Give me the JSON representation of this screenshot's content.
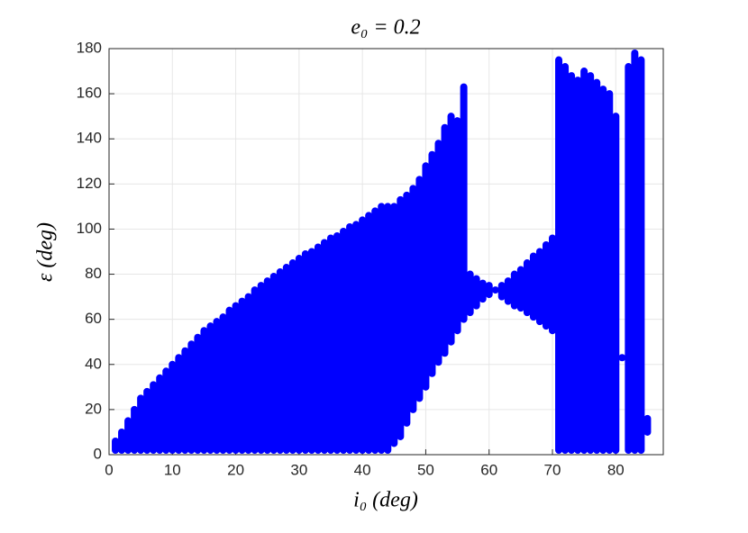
{
  "chart_data": {
    "type": "range",
    "title": "e₀ = 0.2",
    "x_label": "i₀ (deg)",
    "y_label": "ε (deg)",
    "color": "#0000ff",
    "x": [
      1,
      2,
      3,
      4,
      5,
      6,
      7,
      8,
      9,
      10,
      11,
      12,
      13,
      14,
      15,
      16,
      17,
      18,
      19,
      20,
      21,
      22,
      23,
      24,
      25,
      26,
      27,
      28,
      29,
      30,
      31,
      32,
      33,
      34,
      35,
      36,
      37,
      38,
      39,
      40,
      41,
      42,
      43,
      44,
      45,
      46,
      47,
      48,
      49,
      50,
      51,
      52,
      53,
      54,
      55,
      56,
      57,
      58,
      59,
      60,
      61,
      62,
      63,
      64,
      65,
      66,
      67,
      68,
      69,
      70,
      71,
      72,
      73,
      74,
      75,
      76,
      77,
      78,
      79,
      80,
      81,
      82,
      83,
      84,
      85
    ],
    "low": [
      2,
      2,
      2,
      2,
      2,
      2,
      2,
      2,
      2,
      2,
      2,
      2,
      2,
      2,
      2,
      2,
      2,
      2,
      2,
      2,
      2,
      2,
      2,
      2,
      2,
      2,
      2,
      2,
      2,
      2,
      2,
      2,
      2,
      2,
      2,
      2,
      2,
      2,
      2,
      2,
      2,
      2,
      2,
      2,
      5,
      8,
      14,
      20,
      25,
      30,
      36,
      41,
      45,
      50,
      55,
      60,
      63,
      66,
      69,
      71,
      73,
      70,
      68,
      66,
      65,
      63,
      61,
      59,
      57,
      55,
      2,
      2,
      2,
      2,
      2,
      2,
      2,
      2,
      2,
      2,
      43,
      2,
      2,
      2,
      10
    ],
    "high": [
      6,
      10,
      15,
      20,
      25,
      28,
      31,
      34,
      37,
      40,
      43,
      46,
      49,
      52,
      55,
      57,
      59,
      61,
      64,
      66,
      68,
      70,
      73,
      75,
      77,
      79,
      81,
      83,
      85,
      87,
      89,
      90,
      92,
      94,
      96,
      97,
      99,
      101,
      102,
      104,
      106,
      108,
      110,
      110,
      110,
      113,
      115,
      118,
      122,
      128,
      133,
      138,
      145,
      150,
      148,
      163,
      80,
      78,
      76,
      75,
      73,
      75,
      77,
      80,
      82,
      85,
      88,
      90,
      93,
      96,
      175,
      172,
      168,
      166,
      170,
      168,
      165,
      162,
      160,
      150,
      43,
      172,
      178,
      175,
      16
    ],
    "xlim": [
      0,
      87.5
    ],
    "ylim": [
      0,
      180
    ],
    "xticks": [
      0,
      10,
      20,
      30,
      40,
      50,
      60,
      70,
      80
    ],
    "yticks": [
      0,
      20,
      40,
      60,
      80,
      100,
      120,
      140,
      160,
      180
    ],
    "grid": true
  }
}
